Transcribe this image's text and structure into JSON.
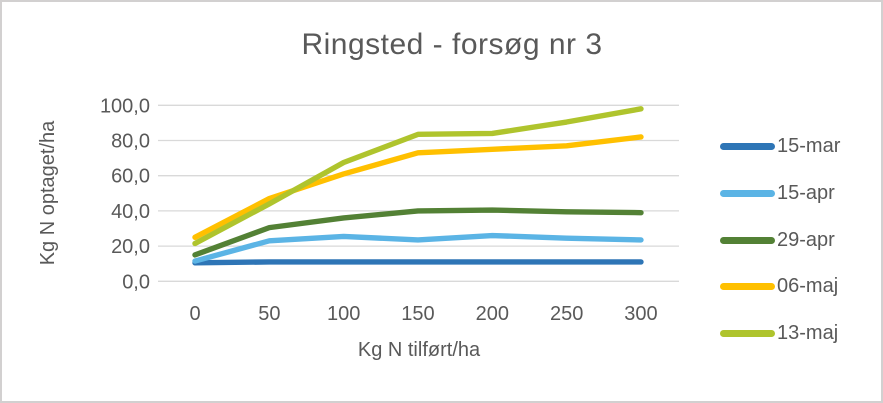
{
  "frame": {
    "background": "#ffffff",
    "border_color": "#d2d0d0"
  },
  "chart_data": {
    "type": "line",
    "title": "Ringsted - forsøg nr 3",
    "xlabel": "Kg N tilført/ha",
    "ylabel": "Kg N optaget/ha",
    "x": [
      0,
      50,
      100,
      150,
      200,
      250,
      300
    ],
    "x_tick_labels": [
      "0",
      "50",
      "100",
      "150",
      "200",
      "250",
      "300"
    ],
    "y_ticks": [
      0,
      20,
      40,
      60,
      80,
      100
    ],
    "y_tick_labels": [
      "0,0",
      "20,0",
      "40,0",
      "60,0",
      "80,0",
      "100,0"
    ],
    "ylim": [
      0,
      100
    ],
    "grid": true,
    "legend_position": "right",
    "series": [
      {
        "name": "15-mar",
        "color": "#2E75B6",
        "values": [
          10.5,
          11,
          11,
          11,
          11,
          11,
          11
        ]
      },
      {
        "name": "15-apr",
        "color": "#5BB4E5",
        "values": [
          11.5,
          23,
          25.5,
          23.5,
          26,
          24.5,
          23.5
        ]
      },
      {
        "name": "29-apr",
        "color": "#538135",
        "values": [
          15,
          30.5,
          36,
          40,
          40.5,
          39.5,
          39
        ]
      },
      {
        "name": "06-maj",
        "color": "#FFC000",
        "values": [
          25,
          47,
          61,
          73,
          75,
          77,
          82
        ]
      },
      {
        "name": "13-maj",
        "color": "#AFC42D",
        "values": [
          21.5,
          44,
          67.5,
          83.5,
          84,
          90.5,
          98
        ]
      }
    ],
    "styles": {
      "text_color": "#595959",
      "grid_color": "#D9D9D9",
      "title_color": "#595959"
    }
  }
}
